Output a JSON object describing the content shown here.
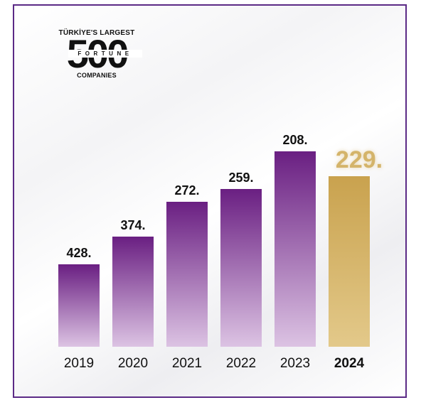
{
  "logo": {
    "top_text": "TÜRKİYE'S LARGEST",
    "number": "500",
    "band_text": "FORTUNE",
    "bottom_text": "COMPANIES"
  },
  "colors": {
    "frame": "#5b2a86",
    "bar_purple_top": "#6a1f82",
    "bar_purple_bottom": "#dcc3e3",
    "bar_gold_top": "#c9a24e",
    "bar_gold_bottom": "#e3c98a",
    "highlight_label": "#d4b46a",
    "text": "#111111"
  },
  "chart_data": {
    "type": "bar",
    "title": "",
    "xlabel": "",
    "ylabel": "",
    "categories": [
      "2019",
      "2020",
      "2021",
      "2022",
      "2023",
      "2024"
    ],
    "values": [
      428,
      374,
      272,
      259,
      208,
      229
    ],
    "labels": [
      "428.",
      "374.",
      "272.",
      "259.",
      "208.",
      "229."
    ],
    "highlight_index": 5
  }
}
